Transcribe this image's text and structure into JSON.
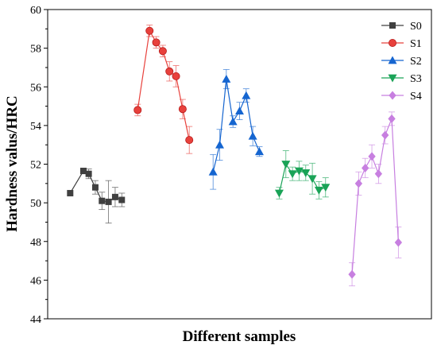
{
  "chart_data": {
    "type": "scatter",
    "xlabel": "Different samples",
    "ylabel": "Hardness valus/HRC",
    "ylim": [
      44,
      60
    ],
    "yticks": [
      44,
      46,
      48,
      50,
      52,
      54,
      56,
      58,
      60
    ],
    "xlim": [
      0,
      29
    ],
    "grid": false,
    "legend_position": "top-right",
    "series": [
      {
        "name": "S0",
        "color": "#404040",
        "marker": "square",
        "x": [
          1.7,
          2.7,
          3.1,
          3.6,
          4.1,
          4.6,
          5.1,
          5.6
        ],
        "y": [
          50.5,
          51.65,
          51.5,
          50.8,
          50.1,
          50.05,
          50.3,
          50.15
        ],
        "err": [
          0.0,
          0.15,
          0.25,
          0.35,
          0.45,
          1.1,
          0.5,
          0.35
        ]
      },
      {
        "name": "S1",
        "color": "#e8413c",
        "marker": "circle",
        "x": [
          6.8,
          7.7,
          8.2,
          8.7,
          9.2,
          9.7,
          10.2,
          10.7
        ],
        "y": [
          54.8,
          58.9,
          58.3,
          57.85,
          56.8,
          56.55,
          54.85,
          53.25
        ],
        "err": [
          0.3,
          0.3,
          0.3,
          0.3,
          0.5,
          0.55,
          0.5,
          0.7
        ]
      },
      {
        "name": "S2",
        "color": "#1565d0",
        "marker": "triangle-up",
        "x": [
          12.5,
          13.0,
          13.5,
          14.0,
          14.5,
          15.0,
          15.5,
          16.0
        ],
        "y": [
          51.6,
          53.0,
          56.4,
          54.2,
          54.75,
          55.55,
          53.45,
          52.65
        ],
        "err": [
          0.9,
          0.8,
          0.5,
          0.3,
          0.45,
          0.35,
          0.5,
          0.25
        ]
      },
      {
        "name": "S3",
        "color": "#1aa357",
        "marker": "triangle-down",
        "x": [
          17.5,
          18.0,
          18.5,
          19.0,
          19.5,
          20.0,
          20.5,
          21.0
        ],
        "y": [
          50.5,
          52.0,
          51.5,
          51.65,
          51.55,
          51.25,
          50.65,
          50.8
        ],
        "err": [
          0.3,
          0.7,
          0.35,
          0.5,
          0.4,
          0.8,
          0.45,
          0.5
        ]
      },
      {
        "name": "S4",
        "color": "#c77fe0",
        "marker": "diamond",
        "x": [
          23.0,
          23.5,
          24.0,
          24.5,
          25.0,
          25.5,
          26.0,
          26.5
        ],
        "y": [
          46.3,
          51.0,
          51.8,
          52.4,
          51.5,
          53.5,
          54.35,
          47.95
        ],
        "err": [
          0.6,
          0.6,
          0.5,
          0.6,
          0.5,
          0.45,
          0.35,
          0.8
        ]
      }
    ]
  }
}
